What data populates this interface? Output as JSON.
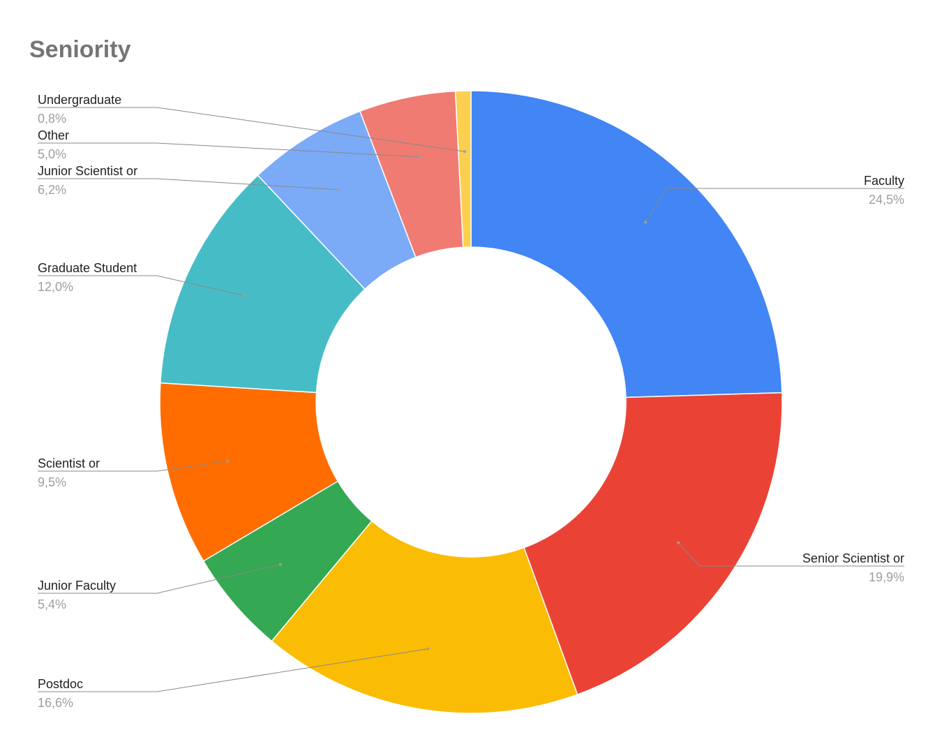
{
  "chart_data": {
    "type": "pie",
    "style": "donut",
    "title": "Seniority",
    "slices": [
      {
        "label": "Faculty",
        "value": 24.5,
        "display": "24,5%",
        "color": "#4285F4"
      },
      {
        "label": "Senior Scientist or",
        "value": 19.9,
        "display": "19,9%",
        "color": "#EA4335"
      },
      {
        "label": "Postdoc",
        "value": 16.6,
        "display": "16,6%",
        "color": "#FBBC04"
      },
      {
        "label": "Junior Faculty",
        "value": 5.4,
        "display": "5,4%",
        "color": "#34A853"
      },
      {
        "label": "Scientist or",
        "value": 9.5,
        "display": "9,5%",
        "color": "#FF6D01"
      },
      {
        "label": "Graduate Student",
        "value": 12.0,
        "display": "12,0%",
        "color": "#46BDC6"
      },
      {
        "label": "Junior Scientist or",
        "value": 6.2,
        "display": "6,2%",
        "color": "#7BAAF7"
      },
      {
        "label": "Other",
        "value": 5.0,
        "display": "5,0%",
        "color": "#F07B72"
      },
      {
        "label": "Undergraduate",
        "value": 0.8,
        "display": "0,8%",
        "color": "#FCD04F"
      }
    ]
  }
}
